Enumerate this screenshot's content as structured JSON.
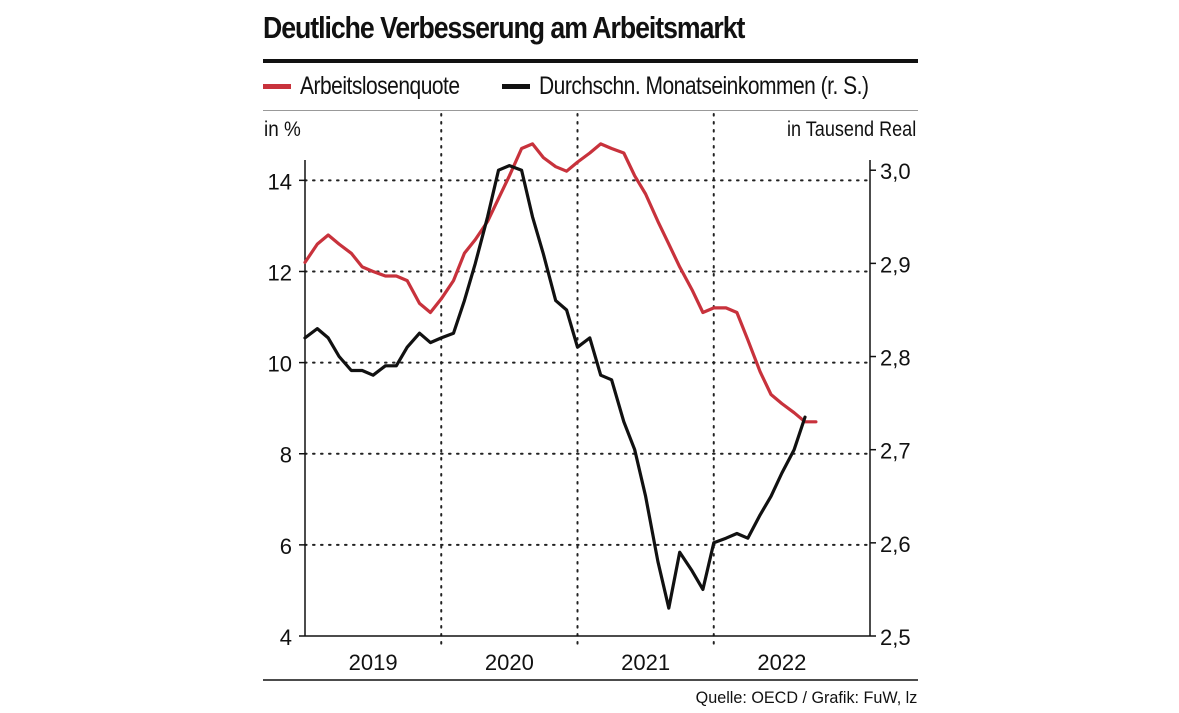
{
  "chart_data": {
    "type": "line",
    "title": "Deutliche Verbesserung am Arbeitsmarkt",
    "left_axis_unit": "in %",
    "right_axis_unit": "in Tausend Real",
    "source": "Quelle: OECD / Grafik: FuW, lz",
    "left_ylim": [
      4,
      15.5
    ],
    "right_ylim": [
      2.5,
      3.0625
    ],
    "left_ticks": [
      "4",
      "6",
      "8",
      "10",
      "12",
      "14"
    ],
    "left_tick_values": [
      4,
      6,
      8,
      10,
      12,
      14
    ],
    "right_ticks": [
      "2,5",
      "2,6",
      "2,7",
      "2,8",
      "2,9",
      "3,0"
    ],
    "right_tick_values": [
      2.5,
      2.6,
      2.7,
      2.8,
      2.9,
      3.0
    ],
    "x_range": [
      2018.58,
      2022.58
    ],
    "x_gridlines": [
      2019.58,
      2020.58,
      2021.58
    ],
    "years": [
      "2019",
      "2020",
      "2021",
      "2022"
    ],
    "year_positions": [
      2019.08,
      2020.08,
      2021.08,
      2022.08
    ],
    "legend_position": "top",
    "series": [
      {
        "name": "Arbeitslosenquote",
        "axis": "left",
        "color": "#c8323c",
        "x": [
          2018.58,
          2018.67,
          2018.75,
          2018.83,
          2018.92,
          2019.0,
          2019.08,
          2019.17,
          2019.25,
          2019.33,
          2019.42,
          2019.5,
          2019.58,
          2019.67,
          2019.75,
          2019.83,
          2019.92,
          2020.0,
          2020.08,
          2020.17,
          2020.25,
          2020.33,
          2020.42,
          2020.5,
          2020.58,
          2020.67,
          2020.75,
          2020.83,
          2020.92,
          2021.0,
          2021.08,
          2021.17,
          2021.25,
          2021.33,
          2021.42,
          2021.5,
          2021.58,
          2021.67,
          2021.75,
          2021.83,
          2021.92,
          2022.0,
          2022.08,
          2022.17,
          2022.25,
          2022.33
        ],
        "values": [
          12.2,
          12.6,
          12.8,
          12.6,
          12.4,
          12.1,
          12.0,
          11.9,
          11.9,
          11.8,
          11.3,
          11.1,
          11.4,
          11.8,
          12.4,
          12.7,
          13.1,
          13.6,
          14.1,
          14.7,
          14.8,
          14.5,
          14.3,
          14.2,
          14.4,
          14.6,
          14.8,
          14.7,
          14.6,
          14.1,
          13.7,
          13.1,
          12.6,
          12.1,
          11.6,
          11.1,
          11.2,
          11.2,
          11.1,
          10.5,
          9.8,
          9.3,
          9.1,
          8.9,
          8.7,
          8.7
        ]
      },
      {
        "name": "Durchschn. Monatseinkommen (r. S.)",
        "axis": "right",
        "color": "#111111",
        "x": [
          2018.58,
          2018.67,
          2018.75,
          2018.83,
          2018.92,
          2019.0,
          2019.08,
          2019.17,
          2019.25,
          2019.33,
          2019.42,
          2019.5,
          2019.58,
          2019.67,
          2019.75,
          2019.83,
          2019.92,
          2020.0,
          2020.08,
          2020.17,
          2020.25,
          2020.33,
          2020.42,
          2020.5,
          2020.58,
          2020.67,
          2020.75,
          2020.83,
          2020.92,
          2021.0,
          2021.08,
          2021.17,
          2021.25,
          2021.33,
          2021.42,
          2021.5,
          2021.58,
          2021.67,
          2021.75,
          2021.83,
          2021.92,
          2022.0,
          2022.08,
          2022.17,
          2022.25
        ],
        "values": [
          2.82,
          2.83,
          2.82,
          2.8,
          2.785,
          2.785,
          2.78,
          2.79,
          2.79,
          2.81,
          2.825,
          2.815,
          2.82,
          2.825,
          2.86,
          2.9,
          2.95,
          3.0,
          3.005,
          3.0,
          2.95,
          2.91,
          2.86,
          2.85,
          2.81,
          2.82,
          2.78,
          2.775,
          2.73,
          2.7,
          2.65,
          2.58,
          2.53,
          2.59,
          2.57,
          2.55,
          2.6,
          2.605,
          2.61,
          2.605,
          2.63,
          2.65,
          2.675,
          2.7,
          2.735
        ]
      }
    ]
  }
}
